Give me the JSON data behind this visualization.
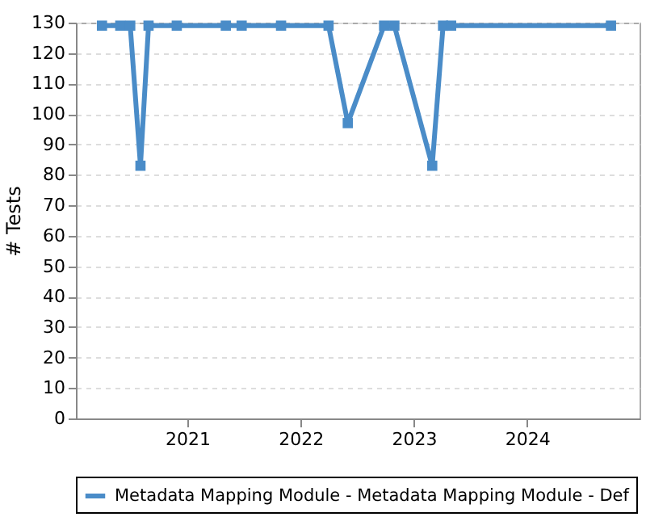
{
  "chart_data": {
    "type": "line",
    "ylabel": "# Tests",
    "x": [
      "2020-04-01",
      "2020-05-30",
      "2020-07-01",
      "2020-08-03",
      "2020-08-29",
      "2020-11-28",
      "2021-05-05",
      "2021-06-25",
      "2021-10-30",
      "2022-04-01",
      "2022-06-02",
      "2022-09-27",
      "2022-10-30",
      "2023-03-01",
      "2023-04-05",
      "2023-05-01",
      "2024-09-27"
    ],
    "series": [
      {
        "name": "Metadata Mapping Module - Metadata Mapping Module - Def",
        "color": "#4a8cc8",
        "values": [
          129,
          129,
          129,
          83,
          129,
          129,
          129,
          129,
          129,
          129,
          97,
          129,
          129,
          83,
          129,
          129,
          129
        ]
      }
    ],
    "xlim": [
      "2020-01-08",
      "2024-12-28"
    ],
    "xticks": [
      "2021",
      "2022",
      "2023",
      "2024"
    ],
    "ylim": [
      0,
      130
    ],
    "yticks": [
      0,
      10,
      20,
      30,
      40,
      50,
      60,
      70,
      80,
      90,
      100,
      110,
      120,
      130
    ],
    "grid": "y",
    "legend": "bottom",
    "marker": "square",
    "line_style": "solid"
  }
}
